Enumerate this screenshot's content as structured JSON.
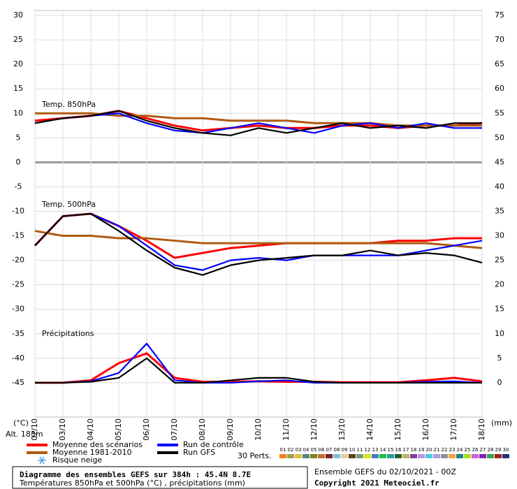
{
  "chart_data": {
    "type": "line",
    "title": "Diagramme des ensembles GEFS sur 384h : 45.4N 8.7E",
    "subtitle": "Températures 850hPa et 500hPa (°C) , précipitations (mm)",
    "run_info": "Ensemble GEFS du 02/10/2021 - 00Z",
    "copyright": "Copyright 2021 Meteociel.fr",
    "altitude": "Alt. 183m",
    "y_label": "(°C)",
    "y2_label": "(mm)",
    "panel_labels": [
      "Temp. 850hPa",
      "Temp. 500hPa",
      "Précipitations"
    ],
    "categories": [
      "02/10",
      "03/10",
      "04/10",
      "05/10",
      "06/10",
      "07/10",
      "08/10",
      "09/10",
      "10/10",
      "11/10",
      "12/10",
      "13/10",
      "14/10",
      "15/10",
      "16/10",
      "17/10",
      "18/10"
    ],
    "ylim": [
      -52,
      31
    ],
    "yticks": [
      -45,
      -40,
      -35,
      -30,
      -25,
      -20,
      -15,
      -10,
      -5,
      0,
      5,
      10,
      15,
      20,
      25,
      30
    ],
    "y2lim": [
      -7,
      76
    ],
    "y2ticks": [
      0,
      5,
      10,
      15,
      20,
      25,
      30,
      35,
      40,
      45,
      50,
      55,
      60,
      65,
      70,
      75
    ],
    "grid": true,
    "series": [
      {
        "name": "Moyenne des scénarios",
        "color": "#ff0000",
        "t850": [
          8.5,
          9,
          9.5,
          10.5,
          9,
          7.5,
          6.5,
          7,
          7.5,
          7,
          7,
          7.5,
          7.5,
          7,
          7.5,
          7.5,
          8
        ],
        "t500": [
          -17,
          -11,
          -10.5,
          -13,
          -16,
          -19.5,
          -18.5,
          -17.5,
          -17,
          -16.5,
          -16.5,
          -16.5,
          -16.5,
          -16,
          -16,
          -15.5,
          -15.5
        ],
        "precip": [
          0,
          0,
          0.5,
          4,
          6,
          1,
          0.2,
          0.2,
          0.3,
          0.2,
          0.2,
          0.1,
          0.1,
          0.1,
          0.5,
          1,
          0.3
        ]
      },
      {
        "name": "Moyenne 1981-2010",
        "color": "#b05a10",
        "t850": [
          10,
          10,
          10,
          9.5,
          9.5,
          9,
          9,
          8.5,
          8.5,
          8.5,
          8,
          8,
          8,
          7.5,
          7.5,
          7.5,
          7.5
        ],
        "t500": [
          -14,
          -15,
          -15,
          -15.5,
          -15.5,
          -16,
          -16.5,
          -16.5,
          -16.5,
          -16.5,
          -16.5,
          -16.5,
          -16.5,
          -16.5,
          -16.5,
          -17,
          -17.5
        ]
      },
      {
        "name": "Run de contrôle",
        "color": "#0000ff",
        "t850": [
          8,
          9,
          9.5,
          10,
          8,
          6.5,
          6,
          7,
          8,
          7,
          6,
          7.5,
          8,
          7,
          8,
          7,
          7
        ],
        "t500": [
          -17,
          -11,
          -10.5,
          -13,
          -17,
          -21,
          -22,
          -20,
          -19.5,
          -20,
          -19,
          -19,
          -19,
          -19,
          -18,
          -17,
          -16
        ],
        "precip": [
          0,
          0,
          0.3,
          2,
          8,
          0.5,
          0,
          0,
          0.3,
          0.5,
          0,
          0,
          0,
          0,
          0.2,
          0.3,
          0
        ]
      },
      {
        "name": "Run GFS",
        "color": "#000000",
        "t850": [
          8,
          9,
          9.5,
          10.5,
          8.5,
          7,
          6,
          5.5,
          7,
          6,
          7,
          8,
          7,
          7.5,
          7,
          8,
          8
        ],
        "t500": [
          -17,
          -11,
          -10.5,
          -14,
          -18,
          -21.5,
          -23,
          -21,
          -20,
          -19.5,
          -19,
          -19,
          -18,
          -19,
          -18.5,
          -19,
          -20.5
        ],
        "precip": [
          0,
          0,
          0.2,
          1,
          5,
          0,
          0,
          0.5,
          1,
          1,
          0.2,
          0,
          0,
          0,
          0,
          0,
          0
        ]
      }
    ],
    "snow_label": "Risque neige",
    "perturbations": {
      "label": "30 Perts.",
      "members": [
        {
          "label": "01",
          "color": "#f08020"
        },
        {
          "label": "02",
          "color": "#a0a040"
        },
        {
          "label": "03",
          "color": "#e0c040"
        },
        {
          "label": "04",
          "color": "#608080"
        },
        {
          "label": "05",
          "color": "#808020"
        },
        {
          "label": "06",
          "color": "#c07030"
        },
        {
          "label": "07",
          "color": "#802020"
        },
        {
          "label": "08",
          "color": "#80c0e0"
        },
        {
          "label": "09",
          "color": "#e0d0a0"
        },
        {
          "label": "10",
          "color": "#604020"
        },
        {
          "label": "11",
          "color": "#70a070"
        },
        {
          "label": "12",
          "color": "#e0e020"
        },
        {
          "label": "13",
          "color": "#4080c0"
        },
        {
          "label": "14",
          "color": "#20c040"
        },
        {
          "label": "15",
          "color": "#20a0a0"
        },
        {
          "label": "16",
          "color": "#206020"
        },
        {
          "label": "17",
          "color": "#c0b060"
        },
        {
          "label": "18",
          "color": "#8040a0"
        },
        {
          "label": "19",
          "color": "#c090e0"
        },
        {
          "label": "20",
          "color": "#40d0e0"
        },
        {
          "label": "21",
          "color": "#b0a0e0"
        },
        {
          "label": "22",
          "color": "#909090"
        },
        {
          "label": "23",
          "color": "#f0a040"
        },
        {
          "label": "24",
          "color": "#208080"
        },
        {
          "label": "25",
          "color": "#a0e020"
        },
        {
          "label": "26",
          "color": "#d060d0"
        },
        {
          "label": "27",
          "color": "#8020c0"
        },
        {
          "label": "28",
          "color": "#40a040"
        },
        {
          "label": "29",
          "color": "#a02020"
        },
        {
          "label": "30",
          "color": "#203080"
        }
      ]
    }
  }
}
